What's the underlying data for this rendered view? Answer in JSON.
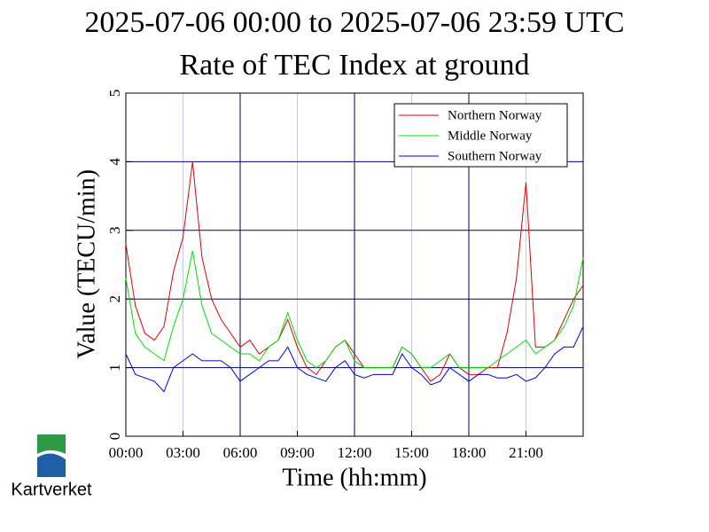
{
  "chart_data": {
    "type": "line",
    "title": "2025-07-06 00:00 to 2025-07-06 23:59 UTC",
    "subtitle": "Rate of TEC Index at ground",
    "xlabel": "Time (hh:mm)",
    "ylabel": "Value (TECU/min)",
    "x": [
      0,
      0.5,
      1,
      1.5,
      2,
      2.5,
      3,
      3.5,
      4,
      4.5,
      5,
      5.5,
      6,
      6.5,
      7,
      7.5,
      8,
      8.5,
      9,
      9.5,
      10,
      10.5,
      11,
      11.5,
      12,
      12.5,
      13,
      13.5,
      14,
      14.5,
      15,
      15.5,
      16,
      16.5,
      17,
      17.5,
      18,
      18.5,
      19,
      19.5,
      20,
      20.5,
      21,
      21.5,
      22,
      22.5,
      23,
      23.5,
      24
    ],
    "xlim": [
      0,
      24
    ],
    "xticks": [
      {
        "value": 0,
        "label": "00:00"
      },
      {
        "value": 3,
        "label": "03:00"
      },
      {
        "value": 6,
        "label": "06:00"
      },
      {
        "value": 9,
        "label": "09:00"
      },
      {
        "value": 12,
        "label": "12:00"
      },
      {
        "value": 15,
        "label": "15:00"
      },
      {
        "value": 18,
        "label": "18:00"
      },
      {
        "value": 21,
        "label": "21:00"
      }
    ],
    "ylim": [
      0,
      5
    ],
    "yticks": [
      0,
      1,
      2,
      3,
      4,
      5
    ],
    "grid": true,
    "xgrid_colors": [
      "#000060",
      "#c8c8e8"
    ],
    "legend": "upper right",
    "series": [
      {
        "name": "Northern Norway",
        "color": "#e00000",
        "values": [
          2.8,
          1.9,
          1.5,
          1.4,
          1.6,
          2.4,
          2.9,
          4.0,
          2.6,
          2.0,
          1.7,
          1.5,
          1.3,
          1.4,
          1.2,
          1.3,
          1.4,
          1.7,
          1.3,
          1.0,
          0.9,
          1.1,
          1.3,
          1.4,
          1.2,
          1.0,
          1.0,
          1.0,
          1.0,
          1.3,
          1.2,
          1.0,
          0.8,
          0.9,
          1.2,
          1.0,
          0.9,
          0.9,
          1.0,
          1.0,
          1.5,
          2.3,
          3.7,
          1.3,
          1.3,
          1.4,
          1.7,
          2.0,
          2.2
        ]
      },
      {
        "name": "Middle Norway",
        "color": "#00e000",
        "values": [
          2.3,
          1.5,
          1.3,
          1.2,
          1.1,
          1.6,
          2.0,
          2.7,
          1.9,
          1.5,
          1.4,
          1.3,
          1.2,
          1.2,
          1.1,
          1.3,
          1.4,
          1.8,
          1.4,
          1.1,
          1.0,
          1.1,
          1.3,
          1.4,
          1.1,
          1.0,
          1.0,
          1.0,
          1.0,
          1.3,
          1.2,
          1.0,
          1.0,
          1.1,
          1.2,
          1.0,
          1.0,
          1.0,
          1.0,
          1.1,
          1.2,
          1.3,
          1.4,
          1.2,
          1.3,
          1.4,
          1.6,
          1.9,
          2.6
        ]
      },
      {
        "name": "Southern Norway",
        "color": "#0000e0",
        "values": [
          1.2,
          0.9,
          0.85,
          0.8,
          0.65,
          1.0,
          1.1,
          1.2,
          1.1,
          1.1,
          1.1,
          1.0,
          0.8,
          0.9,
          1.0,
          1.1,
          1.1,
          1.3,
          1.0,
          0.9,
          0.85,
          0.8,
          1.0,
          1.1,
          0.9,
          0.85,
          0.9,
          0.9,
          0.9,
          1.2,
          1.0,
          0.9,
          0.75,
          0.8,
          1.0,
          0.9,
          0.8,
          0.9,
          0.9,
          0.85,
          0.85,
          0.9,
          0.8,
          0.85,
          1.0,
          1.2,
          1.3,
          1.3,
          1.6
        ]
      }
    ]
  },
  "logo": {
    "text": "Kartverket"
  }
}
